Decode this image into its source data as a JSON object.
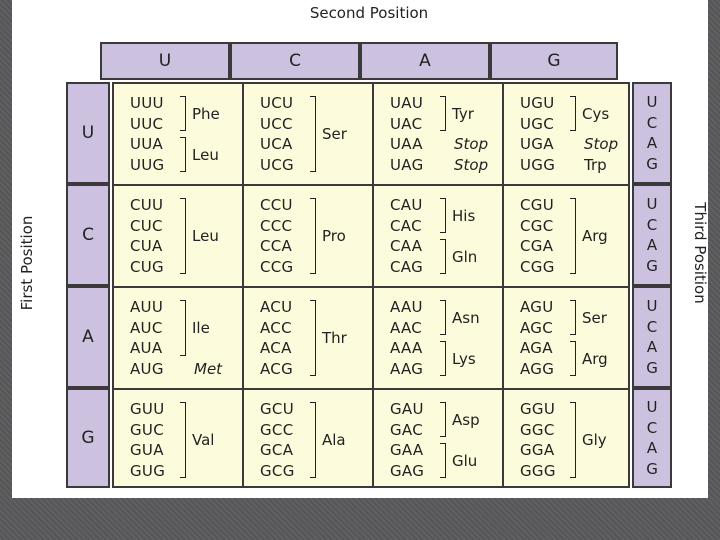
{
  "labels": {
    "second_position": "Second Position",
    "first_position": "First Position",
    "third_position": "Third Position"
  },
  "colors": {
    "header_fill": "#ccc2e0",
    "cell_fill": "#fcfbdc",
    "background": "#5a5a5c"
  },
  "bases": [
    "U",
    "C",
    "A",
    "G"
  ],
  "cells": [
    [
      {
        "codons": [
          "UUU",
          "UUC",
          "UUA",
          "UUG"
        ],
        "groups": [
          {
            "from": 0,
            "to": 1,
            "aa": "Phe"
          },
          {
            "from": 2,
            "to": 3,
            "aa": "Leu"
          }
        ]
      },
      {
        "codons": [
          "UCU",
          "UCC",
          "UCA",
          "UCG"
        ],
        "groups": [
          {
            "from": 0,
            "to": 3,
            "aa": "Ser"
          }
        ]
      },
      {
        "codons": [
          "UAU",
          "UAC",
          "UAA",
          "UAG"
        ],
        "groups": [
          {
            "from": 0,
            "to": 1,
            "aa": "Tyr"
          },
          {
            "from": 2,
            "to": 2,
            "aa": "Stop",
            "plain": true
          },
          {
            "from": 3,
            "to": 3,
            "aa": "Stop",
            "plain": true
          }
        ]
      },
      {
        "codons": [
          "UGU",
          "UGC",
          "UGA",
          "UGG"
        ],
        "groups": [
          {
            "from": 0,
            "to": 1,
            "aa": "Cys"
          },
          {
            "from": 2,
            "to": 2,
            "aa": "Stop",
            "plain": true
          },
          {
            "from": 3,
            "to": 3,
            "aa": "Trp",
            "plain": true
          }
        ]
      }
    ],
    [
      {
        "codons": [
          "CUU",
          "CUC",
          "CUA",
          "CUG"
        ],
        "groups": [
          {
            "from": 0,
            "to": 3,
            "aa": "Leu"
          }
        ]
      },
      {
        "codons": [
          "CCU",
          "CCC",
          "CCA",
          "CCG"
        ],
        "groups": [
          {
            "from": 0,
            "to": 3,
            "aa": "Pro"
          }
        ]
      },
      {
        "codons": [
          "CAU",
          "CAC",
          "CAA",
          "CAG"
        ],
        "groups": [
          {
            "from": 0,
            "to": 1,
            "aa": "His"
          },
          {
            "from": 2,
            "to": 3,
            "aa": "Gln"
          }
        ]
      },
      {
        "codons": [
          "CGU",
          "CGC",
          "CGA",
          "CGG"
        ],
        "groups": [
          {
            "from": 0,
            "to": 3,
            "aa": "Arg"
          }
        ]
      }
    ],
    [
      {
        "codons": [
          "AUU",
          "AUC",
          "AUA",
          "AUG"
        ],
        "groups": [
          {
            "from": 0,
            "to": 2,
            "aa": "Ile"
          },
          {
            "from": 3,
            "to": 3,
            "aa": "Met",
            "plain": true
          }
        ]
      },
      {
        "codons": [
          "ACU",
          "ACC",
          "ACA",
          "ACG"
        ],
        "groups": [
          {
            "from": 0,
            "to": 3,
            "aa": "Thr"
          }
        ]
      },
      {
        "codons": [
          "AAU",
          "AAC",
          "AAA",
          "AAG"
        ],
        "groups": [
          {
            "from": 0,
            "to": 1,
            "aa": "Asn"
          },
          {
            "from": 2,
            "to": 3,
            "aa": "Lys"
          }
        ]
      },
      {
        "codons": [
          "AGU",
          "AGC",
          "AGA",
          "AGG"
        ],
        "groups": [
          {
            "from": 0,
            "to": 1,
            "aa": "Ser"
          },
          {
            "from": 2,
            "to": 3,
            "aa": "Arg"
          }
        ]
      }
    ],
    [
      {
        "codons": [
          "GUU",
          "GUC",
          "GUA",
          "GUG"
        ],
        "groups": [
          {
            "from": 0,
            "to": 3,
            "aa": "Val"
          }
        ]
      },
      {
        "codons": [
          "GCU",
          "GCC",
          "GCA",
          "GCG"
        ],
        "groups": [
          {
            "from": 0,
            "to": 3,
            "aa": "Ala"
          }
        ]
      },
      {
        "codons": [
          "GAU",
          "GAC",
          "GAA",
          "GAG"
        ],
        "groups": [
          {
            "from": 0,
            "to": 1,
            "aa": "Asp"
          },
          {
            "from": 2,
            "to": 3,
            "aa": "Glu"
          }
        ]
      },
      {
        "codons": [
          "GGU",
          "GGC",
          "GGA",
          "GGG"
        ],
        "groups": [
          {
            "from": 0,
            "to": 3,
            "aa": "Gly"
          }
        ]
      }
    ]
  ]
}
